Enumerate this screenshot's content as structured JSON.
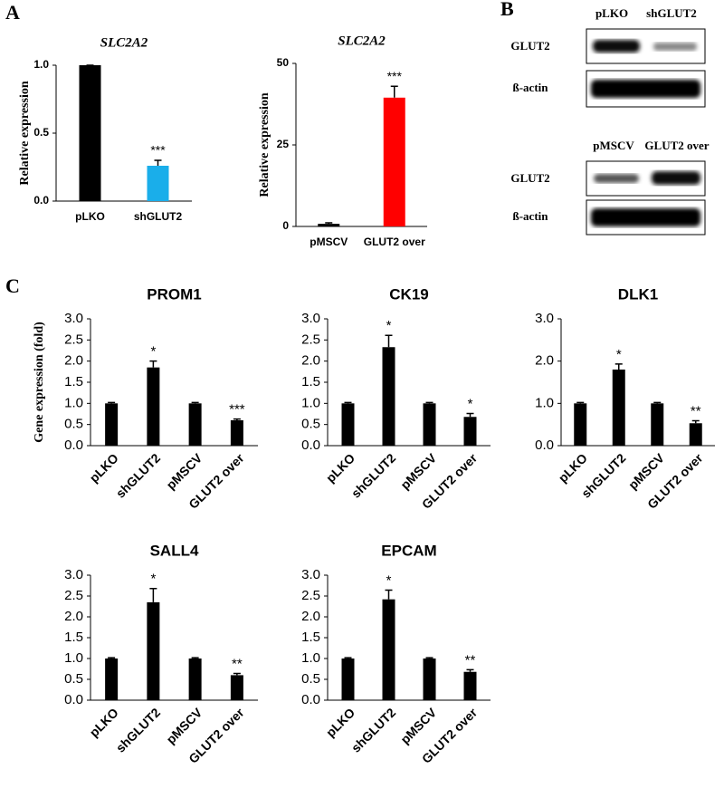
{
  "panel_labels": [
    "A",
    "B",
    "C"
  ],
  "blots": [
    {
      "lanes": [
        "pLKO",
        "shGLUT2"
      ],
      "rows": [
        "GLUT2",
        "ß-actin"
      ]
    },
    {
      "lanes": [
        "pMSCV",
        "GLUT2 over"
      ],
      "rows": [
        "GLUT2",
        "ß-actin"
      ]
    }
  ],
  "chart_data": [
    {
      "type": "bar",
      "title": "SLC2A2",
      "ylabel": "Relative expression",
      "categories": [
        "pLKO",
        "shGLUT2"
      ],
      "values": [
        1,
        0.26
      ],
      "errors": [
        0,
        0.04
      ],
      "colors": [
        "#000000",
        "#1aaeea"
      ],
      "significance": [
        null,
        "***"
      ],
      "ylim": [
        0,
        1
      ],
      "yticks": [
        {
          "value": 0,
          "label": "0.0"
        },
        0.5,
        {
          "value": 1,
          "label": "1.0"
        }
      ]
    },
    {
      "type": "bar",
      "title": "SLC2A2",
      "ylabel": "Relative expression",
      "categories": [
        "pMSCV",
        "GLUT2 over"
      ],
      "values": [
        0.8,
        39.5
      ],
      "errors": [
        0.3,
        3.5
      ],
      "colors": [
        "#000000",
        "#ff0000"
      ],
      "significance": [
        null,
        "***"
      ],
      "ylim": [
        0,
        50
      ],
      "yticks": [
        0,
        25,
        50
      ]
    },
    {
      "type": "bar",
      "title": "PROM1",
      "ylabel": "Gene expression (fold)",
      "categories": [
        "pLKO",
        "shGLUT2",
        "pMSCV",
        "GLUT2 over"
      ],
      "values": [
        1,
        1.85,
        1,
        0.6
      ],
      "errors": [
        0.02,
        0.15,
        0.02,
        0.03
      ],
      "color": "#000000",
      "significance": [
        null,
        "*",
        null,
        "***"
      ],
      "ylim": [
        0,
        3
      ],
      "yticks": [
        {
          "value": 0,
          "label": "0.0"
        },
        0.5,
        {
          "value": 1,
          "label": "1.0"
        },
        1.5,
        {
          "value": 2,
          "label": "2.0"
        },
        2.5,
        {
          "value": 3,
          "label": "3.0"
        }
      ]
    },
    {
      "type": "bar",
      "title": "CK19",
      "categories": [
        "pLKO",
        "shGLUT2",
        "pMSCV",
        "GLUT2 over"
      ],
      "values": [
        1,
        2.33,
        1,
        0.68
      ],
      "errors": [
        0.02,
        0.28,
        0.02,
        0.08
      ],
      "color": "#000000",
      "significance": [
        null,
        "*",
        null,
        "*"
      ],
      "ylim": [
        0,
        3
      ],
      "yticks": [
        {
          "value": 0,
          "label": "0.0"
        },
        0.5,
        {
          "value": 1,
          "label": "1.0"
        },
        1.5,
        {
          "value": 2,
          "label": "2.0"
        },
        2.5,
        {
          "value": 3,
          "label": "3.0"
        }
      ]
    },
    {
      "type": "bar",
      "title": "DLK1",
      "categories": [
        "pLKO",
        "shGLUT2",
        "pMSCV",
        "GLUT2 over"
      ],
      "values": [
        1,
        1.8,
        1,
        0.53
      ],
      "errors": [
        0.02,
        0.13,
        0.02,
        0.06
      ],
      "color": "#000000",
      "significance": [
        null,
        "*",
        null,
        "**"
      ],
      "ylim": [
        0,
        3
      ],
      "yticks": [
        {
          "value": 0,
          "label": "0.0"
        },
        {
          "value": 1,
          "label": "1.0"
        },
        {
          "value": 2,
          "label": "2.0"
        },
        {
          "value": 3,
          "label": "3.0"
        }
      ]
    },
    {
      "type": "bar",
      "title": "SALL4",
      "categories": [
        "pLKO",
        "shGLUT2",
        "pMSCV",
        "GLUT2 over"
      ],
      "values": [
        1,
        2.35,
        1,
        0.6
      ],
      "errors": [
        0.02,
        0.33,
        0.02,
        0.04
      ],
      "color": "#000000",
      "significance": [
        null,
        "*",
        null,
        "**"
      ],
      "ylim": [
        0,
        3
      ],
      "yticks": [
        {
          "value": 0,
          "label": "0.0"
        },
        0.5,
        {
          "value": 1,
          "label": "1.0"
        },
        1.5,
        {
          "value": 2,
          "label": "2.0"
        },
        2.5,
        {
          "value": 3,
          "label": "3.0"
        }
      ]
    },
    {
      "type": "bar",
      "title": "EPCAM",
      "categories": [
        "pLKO",
        "shGLUT2",
        "pMSCV",
        "GLUT2 over"
      ],
      "values": [
        1,
        2.42,
        1,
        0.68
      ],
      "errors": [
        0.02,
        0.22,
        0.02,
        0.05
      ],
      "color": "#000000",
      "significance": [
        null,
        "*",
        null,
        "**"
      ],
      "ylim": [
        0,
        3
      ],
      "yticks": [
        {
          "value": 0,
          "label": "0.0"
        },
        0.5,
        {
          "value": 1,
          "label": "1.0"
        },
        1.5,
        {
          "value": 2,
          "label": "2.0"
        },
        2.5,
        {
          "value": 3,
          "label": "3.0"
        }
      ]
    }
  ]
}
